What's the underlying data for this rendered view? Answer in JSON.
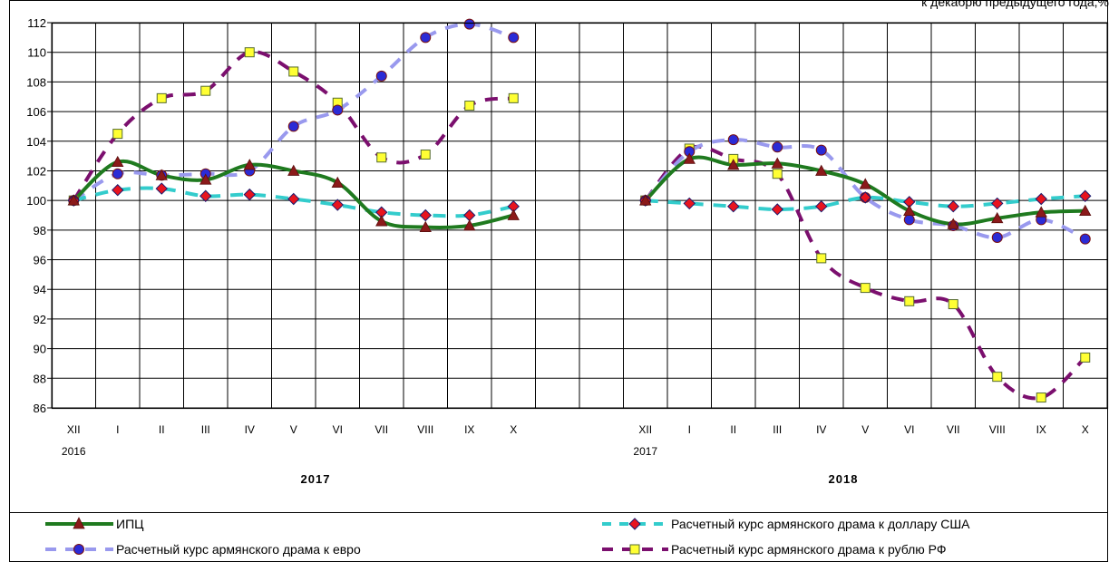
{
  "units_label": "к декабрю предыдущего года,%",
  "chart_data": {
    "type": "line",
    "ylim": [
      86,
      112
    ],
    "ytick_step": 2,
    "grid": true,
    "legend_position": "bottom",
    "x": [
      "XII",
      "I",
      "II",
      "III",
      "IV",
      "V",
      "VI",
      "VII",
      "VIII",
      "IX",
      "X",
      "",
      "",
      "XII",
      "I",
      "II",
      "III",
      "IV",
      "V",
      "VI",
      "VII",
      "VIII",
      "IX",
      "X"
    ],
    "year_labels_small": [
      "2016",
      "2017"
    ],
    "year_labels_big": [
      "2017",
      "2018"
    ],
    "series": [
      {
        "name": "ИПЦ",
        "color": "#1f7a1f",
        "style": "solid",
        "marker": "triangle",
        "marker_color": "#8b1a1a",
        "values": [
          100.0,
          102.6,
          101.7,
          101.4,
          102.4,
          102.0,
          101.2,
          98.6,
          98.2,
          98.3,
          99.0,
          null,
          null,
          100.0,
          102.8,
          102.4,
          102.5,
          102.0,
          101.1,
          99.3,
          98.4,
          98.8,
          99.2,
          99.3
        ]
      },
      {
        "name": "Расчетный курс армянского драма к доллару США",
        "color": "#33cccc",
        "style": "dash",
        "marker": "diamond",
        "marker_color": "#e8141e",
        "values": [
          100.0,
          100.7,
          100.8,
          100.3,
          100.4,
          100.1,
          99.7,
          99.2,
          99.0,
          99.0,
          99.6,
          null,
          null,
          100.0,
          99.8,
          99.6,
          99.4,
          99.6,
          100.2,
          99.9,
          99.6,
          99.8,
          100.1,
          100.3
        ]
      },
      {
        "name": "Расчетный курс армянского драма к евро",
        "color": "#9999ee",
        "style": "dash",
        "marker": "circle",
        "marker_color": "#2b2bd6",
        "values": [
          100.0,
          101.8,
          101.7,
          101.8,
          102.0,
          105.0,
          106.1,
          108.4,
          111.0,
          111.9,
          111.0,
          null,
          null,
          100.0,
          103.3,
          104.1,
          103.6,
          103.4,
          100.2,
          98.7,
          98.3,
          97.5,
          98.7,
          97.4
        ]
      },
      {
        "name": "Расчетный курс армянского драма к рублю РФ",
        "color": "#7b0f6e",
        "style": "dash",
        "marker": "square",
        "marker_color": "#ffff33",
        "values": [
          100.0,
          104.5,
          106.9,
          107.4,
          110.0,
          108.7,
          106.6,
          102.9,
          103.1,
          106.4,
          106.9,
          null,
          null,
          100.0,
          103.5,
          102.8,
          101.8,
          96.1,
          94.1,
          93.2,
          93.0,
          88.1,
          86.7,
          89.4
        ]
      }
    ]
  }
}
